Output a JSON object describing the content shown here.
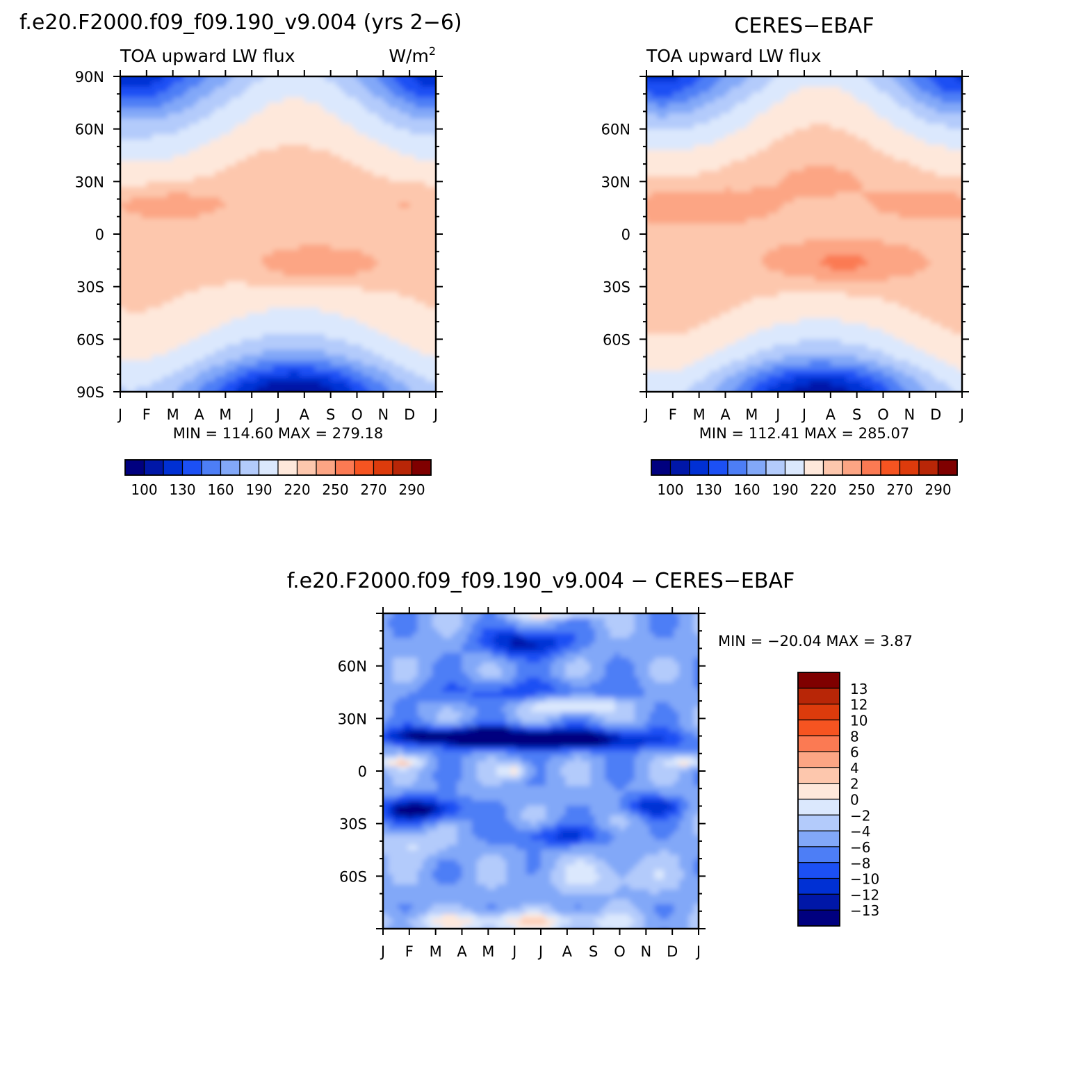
{
  "colors": {
    "abs_scale": [
      "#00007f",
      "#0017a8",
      "#0030d4",
      "#1c50f4",
      "#4d7ef6",
      "#82a8f8",
      "#b3cbfb",
      "#dbe8fd",
      "#fee8db",
      "#fdc7ad",
      "#fca584",
      "#fb7a53",
      "#f65421",
      "#dd3b0c",
      "#b82607",
      "#7f0000"
    ],
    "diff_scale": [
      "#00007f",
      "#0017a8",
      "#0030d4",
      "#1c50f4",
      "#4d7ef6",
      "#82a8f8",
      "#b3cbfb",
      "#dbe8fd",
      "#fee8db",
      "#fdc7ad",
      "#fca584",
      "#fb7a53",
      "#f65421",
      "#dd3b0c",
      "#b82607",
      "#7f0000"
    ]
  },
  "chart_data": [
    {
      "type": "heatmap",
      "id": "model",
      "title": "f.e20.F2000.f09_f09.190_v9.004 (yrs 2-6)",
      "title_display": "f.e20.F2000.f09_f09.190_v9.004 (yrs 2−6)",
      "left_label": "TOA upward LW flux",
      "right_label_base": "W/m",
      "right_label_sup": "2",
      "x_ticks": [
        "J",
        "F",
        "M",
        "A",
        "M",
        "J",
        "J",
        "A",
        "S",
        "O",
        "N",
        "D",
        "J"
      ],
      "y_ticks": [
        "90N",
        "60N",
        "30N",
        "0",
        "30S",
        "60S",
        "90S"
      ],
      "stats": "MIN = 114.60 MAX = 279.18",
      "min": 114.6,
      "max": 279.18,
      "colorbar_labels": [
        "100",
        "130",
        "160",
        "190",
        "220",
        "250",
        "270",
        "290"
      ],
      "levels": [
        100,
        115,
        130,
        145,
        160,
        175,
        190,
        205,
        220,
        235,
        250,
        260,
        270,
        280,
        290
      ]
    },
    {
      "type": "heatmap",
      "id": "obs",
      "title": "CERES-EBAF",
      "title_display": "CERES−EBAF",
      "left_label": "TOA upward LW flux",
      "x_ticks": [
        "J",
        "F",
        "M",
        "A",
        "M",
        "J",
        "J",
        "A",
        "S",
        "O",
        "N",
        "D",
        "J"
      ],
      "y_ticks": [
        "60N",
        "30N",
        "0",
        "30S",
        "60S"
      ],
      "stats": "MIN = 112.41 MAX = 285.07",
      "min": 112.41,
      "max": 285.07,
      "colorbar_labels": [
        "100",
        "130",
        "160",
        "190",
        "220",
        "250",
        "270",
        "290"
      ],
      "levels": [
        100,
        115,
        130,
        145,
        160,
        175,
        190,
        205,
        220,
        235,
        250,
        260,
        270,
        280,
        290
      ]
    },
    {
      "type": "heatmap",
      "id": "diff",
      "title": "f.e20.F2000.f09_f09.190_v9.004 - CERES-EBAF",
      "title_display": "f.e20.F2000.f09_f09.190_v9.004 − CERES−EBAF",
      "x_ticks": [
        "J",
        "F",
        "M",
        "A",
        "M",
        "J",
        "J",
        "A",
        "S",
        "O",
        "N",
        "D",
        "J"
      ],
      "y_ticks": [
        "60N",
        "30N",
        "0",
        "30S",
        "60S"
      ],
      "stats": "MIN = −20.04 MAX =    3.87",
      "min": -20.04,
      "max": 3.87,
      "colorbar_labels": [
        "13",
        "12",
        "10",
        "8",
        "6",
        "4",
        "2",
        "0",
        "−2",
        "−4",
        "−6",
        "−8",
        "−10",
        "−12",
        "−13"
      ],
      "levels": [
        -13,
        -12,
        -10,
        -8,
        -6,
        -4,
        -2,
        0,
        2,
        4,
        6,
        8,
        10,
        12,
        13
      ]
    }
  ]
}
